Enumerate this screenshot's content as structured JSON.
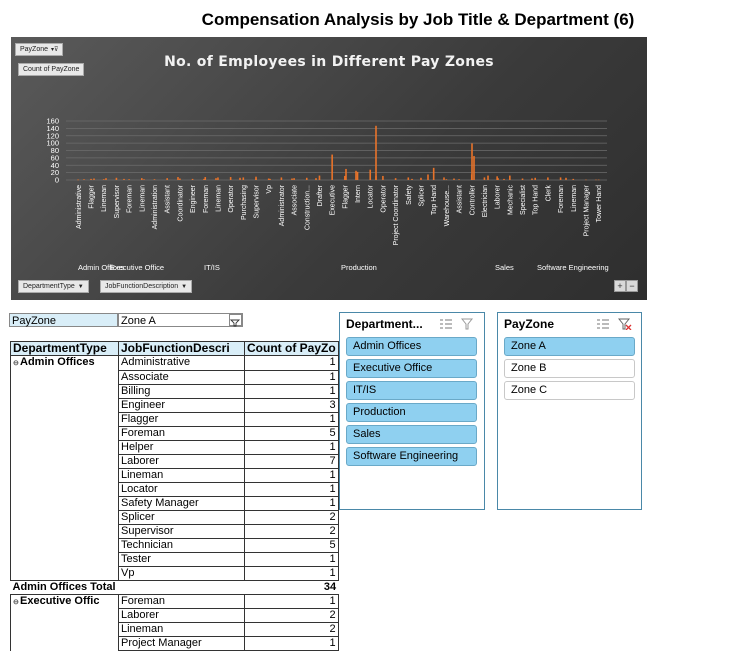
{
  "page_title": "Compensation Analysis by Job Title & Department (6)",
  "chart": {
    "filter_pill": "PayZone",
    "value_pill": "Count of PayZone",
    "axis_pill_1": "DepartmentType",
    "axis_pill_2": "JobFunctionDescription",
    "plus": "+",
    "minus": "−",
    "colors": {
      "bar": "#e8732a",
      "background": "#404040",
      "grid": "#6c6c6c",
      "text": "#ffffff"
    }
  },
  "chart_data": {
    "type": "bar",
    "title": "No. of Employees in Different Pay Zones",
    "ylim": [
      0,
      160
    ],
    "yticks": [
      0,
      20,
      40,
      60,
      80,
      100,
      120,
      140,
      160
    ],
    "grid": true,
    "legend": "none",
    "groups": [
      {
        "name": "Admin Offices",
        "label_x": 67
      },
      {
        "name": "Executive Office",
        "label_x": 99
      },
      {
        "name": "IT/IS",
        "label_x": 193
      },
      {
        "name": "Production",
        "label_x": 330
      },
      {
        "name": "Sales",
        "label_x": 484
      },
      {
        "name": "Software Engineering",
        "label_x": 526
      }
    ],
    "categories": [
      "Administrative",
      "Flagger",
      "Lineman",
      "Supervisor",
      "Foreman",
      "Lineman",
      "Administration",
      "Assistant",
      "Coordinator",
      "Engineer",
      "Foreman",
      "Lineman",
      "Operator",
      "Purchasing",
      "Supervisor",
      "Vp",
      "Administrator",
      "Associate",
      "Construction...",
      "Drafter",
      "Executive",
      "Flagger",
      "Intern",
      "Locator",
      "Operator",
      "Project Coordinator",
      "Safety",
      "Splicer",
      "Top Hand",
      "Warehouse...",
      "Assistant",
      "Controller",
      "Electrician",
      "Laborer",
      "Mechanic",
      "Specialist",
      "Top Hand",
      "Clerk",
      "Foreman",
      "Lineman",
      "Project Manager",
      "Tower Hand"
    ],
    "values": [
      1,
      3,
      2,
      6,
      2,
      5,
      2,
      5,
      4,
      3,
      8,
      7,
      8,
      7,
      9,
      4,
      7,
      5,
      6,
      12,
      69,
      11,
      22,
      28,
      11,
      5,
      7,
      6,
      33,
      2,
      2,
      15,
      7,
      10,
      12,
      4,
      6,
      7,
      7,
      3,
      1,
      1
    ],
    "extra_bars": [
      [
        3,
        1
      ],
      [
        6,
        2
      ],
      [
        11,
        4
      ],
      [
        17,
        5
      ],
      [
        26,
        3
      ],
      [
        36,
        2
      ],
      [
        53,
        8
      ],
      [
        66,
        3
      ],
      [
        72,
        5
      ],
      [
        84,
        6
      ],
      [
        92,
        4
      ],
      [
        99,
        3
      ],
      [
        110,
        4
      ],
      [
        122,
        5
      ],
      [
        137,
        30
      ],
      [
        142,
        25
      ],
      [
        152,
        11
      ],
      [
        170,
        3
      ],
      [
        178,
        15
      ],
      [
        186,
        7
      ],
      [
        191,
        4
      ],
      [
        200,
        99
      ],
      [
        201,
        65
      ],
      [
        208,
        12
      ],
      [
        213,
        5
      ],
      [
        216,
        3
      ],
      [
        230,
        4
      ],
      [
        247,
        6
      ],
      [
        262,
        1
      ]
    ],
    "peak_bar": [
      152,
      147
    ]
  },
  "filter": {
    "label": "PayZone",
    "value": "Zone A"
  },
  "pivot": {
    "headers": [
      "DepartmentType",
      "JobFunctionDescri",
      "Count of PayZo"
    ],
    "groups": [
      {
        "name": "Admin Offices",
        "rows": [
          {
            "job": "Administrative",
            "count": "1"
          },
          {
            "job": "Associate",
            "count": "1"
          },
          {
            "job": "Billing",
            "count": "1"
          },
          {
            "job": "Engineer",
            "count": "3"
          },
          {
            "job": "Flagger",
            "count": "1"
          },
          {
            "job": "Foreman",
            "count": "5"
          },
          {
            "job": "Helper",
            "count": "1"
          },
          {
            "job": "Laborer",
            "count": "7"
          },
          {
            "job": "Lineman",
            "count": "1"
          },
          {
            "job": "Locator",
            "count": "1"
          },
          {
            "job": "Safety Manager",
            "count": "1"
          },
          {
            "job": "Splicer",
            "count": "2"
          },
          {
            "job": "Supervisor",
            "count": "2"
          },
          {
            "job": "Technician",
            "count": "5"
          },
          {
            "job": "Tester",
            "count": "1"
          },
          {
            "job": "Vp",
            "count": "1"
          }
        ],
        "total_label": "Admin Offices Total",
        "total": "34"
      },
      {
        "name": "Executive Offic",
        "rows": [
          {
            "job": "Foreman",
            "count": "1"
          },
          {
            "job": "Laborer",
            "count": "2"
          },
          {
            "job": "Lineman",
            "count": "2"
          },
          {
            "job": "Project Manager",
            "count": "1"
          }
        ]
      }
    ]
  },
  "slicer_department": {
    "title": "Department...",
    "items": [
      {
        "label": "Admin Offices",
        "selected": true
      },
      {
        "label": "Executive Office",
        "selected": true
      },
      {
        "label": "IT/IS",
        "selected": true
      },
      {
        "label": "Production",
        "selected": true
      },
      {
        "label": "Sales",
        "selected": true
      },
      {
        "label": "Software Engineering",
        "selected": true
      }
    ]
  },
  "slicer_payzone": {
    "title": "PayZone",
    "items": [
      {
        "label": "Zone A",
        "selected": true
      },
      {
        "label": "Zone B",
        "selected": false
      },
      {
        "label": "Zone C",
        "selected": false
      }
    ]
  }
}
